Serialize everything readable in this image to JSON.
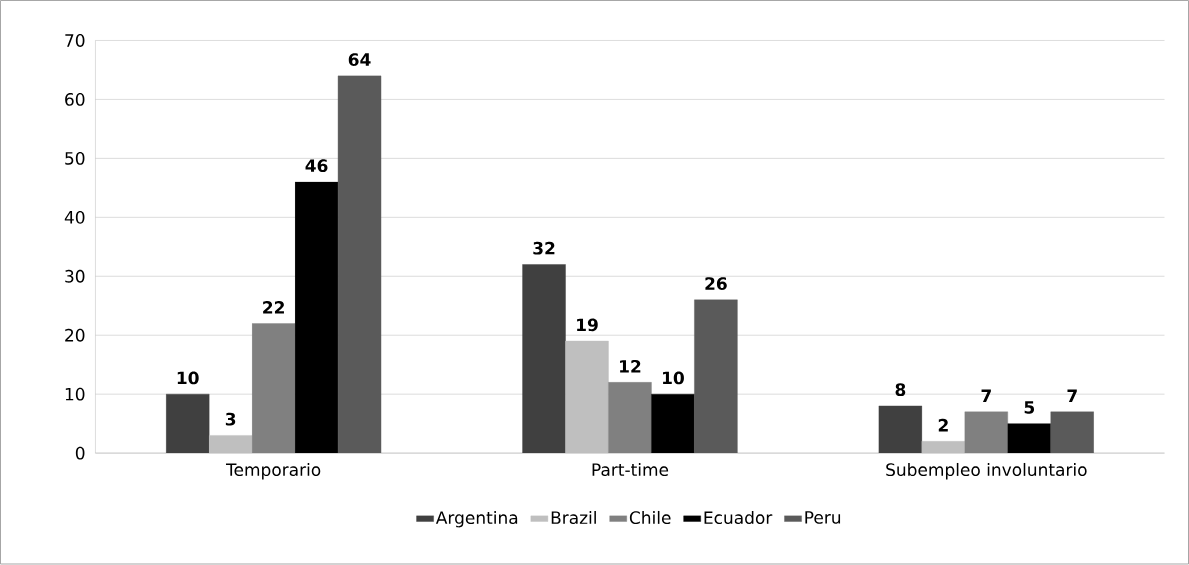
{
  "chart_data": {
    "type": "bar",
    "categories": [
      "Temporario",
      "Part-time",
      "Subempleo involuntario"
    ],
    "series": [
      {
        "name": "Argentina",
        "color": "#404040",
        "values": [
          10,
          32,
          8
        ]
      },
      {
        "name": "Brazil",
        "color": "#bfbfbf",
        "values": [
          3,
          19,
          2
        ]
      },
      {
        "name": "Chile",
        "color": "#808080",
        "values": [
          22,
          12,
          7
        ]
      },
      {
        "name": "Ecuador",
        "color": "#000000",
        "values": [
          46,
          10,
          5
        ]
      },
      {
        "name": "Peru",
        "color": "#5a5a5a",
        "values": [
          64,
          26,
          7
        ]
      }
    ],
    "ylim": [
      0,
      70
    ],
    "yticks": [
      0,
      10,
      20,
      30,
      40,
      50,
      60,
      70
    ],
    "grid": "y",
    "legend": "bottom",
    "data_labels": true
  }
}
